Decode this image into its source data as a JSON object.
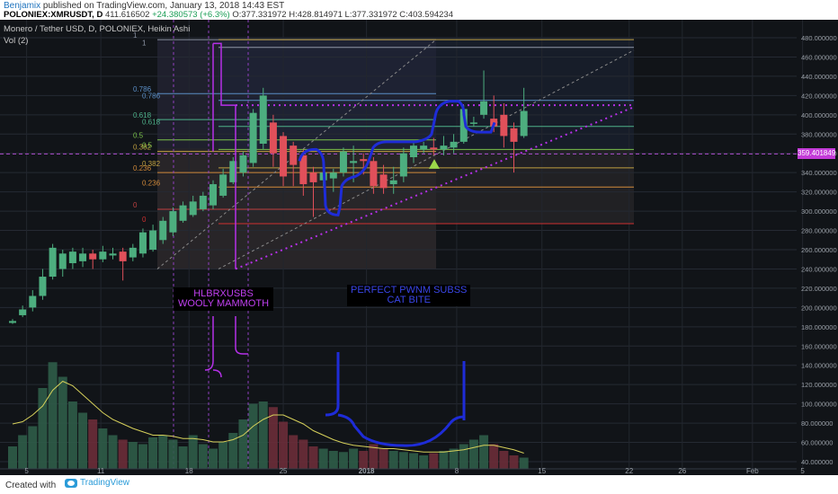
{
  "header": {
    "user": "Benjamix",
    "published": "published on TradingView.com, January 13, 2018 14:43 EST",
    "symbol": "POLONIEX:XMRUSDT, D",
    "price": "411.616502",
    "change": "+24.380573 (+6.3%)",
    "ohlc": "O:377.331972 H:428.814971 L:377.331972 C:403.594234"
  },
  "legend": {
    "title": "Monero / Tether USD, D, POLONIEX, Heikin Ashi",
    "volume": "Vol (2)"
  },
  "annotations": {
    "left": [
      "HLBRXUSBS",
      "WOOLY MAMMOTH"
    ],
    "right": [
      "PERFECT PWNM SUBSS",
      "CAT BITE"
    ]
  },
  "price_tag": "359.401849",
  "footer": {
    "created": "Created with",
    "brand": "TradingView"
  },
  "colors": {
    "up": "#4dae7f",
    "down": "#e0505a",
    "annotation_purple": "#b530e8",
    "annotation_blue": "#1e2cd8",
    "volume_line": "#d6d05a"
  },
  "chart_data": {
    "type": "candlestick",
    "x_ticks": [
      "5",
      "11",
      "18",
      "25",
      "2018",
      "8",
      "15",
      "22",
      "26",
      "Feb",
      "5"
    ],
    "y_ticks": [
      40,
      60,
      80,
      100,
      120,
      140,
      160,
      180,
      200,
      220,
      240,
      260,
      280,
      300,
      320,
      340,
      360,
      380,
      400,
      420,
      440,
      460,
      480
    ],
    "y_unit_decimals": 6,
    "fib_levels_left": [
      "1",
      "0.786",
      "0.618",
      "0.5",
      "0.382",
      "0.236",
      "0"
    ],
    "fib_levels_right": [
      "1",
      "0.786",
      "0.618",
      "0.5",
      "0.382",
      "0.236",
      "0"
    ],
    "fib_right_prices": [
      470,
      415,
      388,
      364,
      345,
      325,
      287
    ],
    "fib_left_prices": [
      478,
      422,
      395,
      374,
      362,
      340,
      302
    ],
    "candles": [
      {
        "o": 184,
        "c": 186,
        "h": 188,
        "l": 183
      },
      {
        "o": 192,
        "c": 198,
        "h": 202,
        "l": 190
      },
      {
        "o": 200,
        "c": 212,
        "h": 218,
        "l": 196
      },
      {
        "o": 212,
        "c": 232,
        "h": 240,
        "l": 208
      },
      {
        "o": 232,
        "c": 262,
        "h": 266,
        "l": 229
      },
      {
        "o": 240,
        "c": 256,
        "h": 260,
        "l": 232
      },
      {
        "o": 246,
        "c": 258,
        "h": 262,
        "l": 240
      },
      {
        "o": 248,
        "c": 256,
        "h": 262,
        "l": 242
      },
      {
        "o": 256,
        "c": 250,
        "h": 260,
        "l": 240
      },
      {
        "o": 250,
        "c": 258,
        "h": 264,
        "l": 247
      },
      {
        "o": 254,
        "c": 256,
        "h": 262,
        "l": 250
      },
      {
        "o": 258,
        "c": 248,
        "h": 262,
        "l": 228
      },
      {
        "o": 252,
        "c": 262,
        "h": 266,
        "l": 248
      },
      {
        "o": 256,
        "c": 278,
        "h": 282,
        "l": 252
      },
      {
        "o": 260,
        "c": 280,
        "h": 286,
        "l": 258
      },
      {
        "o": 270,
        "c": 290,
        "h": 294,
        "l": 266
      },
      {
        "o": 278,
        "c": 300,
        "h": 304,
        "l": 274
      },
      {
        "o": 290,
        "c": 306,
        "h": 310,
        "l": 288
      },
      {
        "o": 296,
        "c": 310,
        "h": 316,
        "l": 294
      },
      {
        "o": 302,
        "c": 316,
        "h": 320,
        "l": 300
      },
      {
        "o": 306,
        "c": 328,
        "h": 332,
        "l": 302
      },
      {
        "o": 316,
        "c": 338,
        "h": 344,
        "l": 314
      },
      {
        "o": 330,
        "c": 352,
        "h": 356,
        "l": 328
      },
      {
        "o": 340,
        "c": 358,
        "h": 362,
        "l": 336
      },
      {
        "o": 350,
        "c": 402,
        "h": 406,
        "l": 346
      },
      {
        "o": 370,
        "c": 420,
        "h": 428,
        "l": 364
      },
      {
        "o": 392,
        "c": 360,
        "h": 400,
        "l": 346
      },
      {
        "o": 378,
        "c": 336,
        "h": 382,
        "l": 326
      },
      {
        "o": 368,
        "c": 348,
        "h": 372,
        "l": 326
      },
      {
        "o": 358,
        "c": 328,
        "h": 364,
        "l": 316
      },
      {
        "o": 340,
        "c": 330,
        "h": 346,
        "l": 294
      },
      {
        "o": 332,
        "c": 340,
        "h": 346,
        "l": 326
      },
      {
        "o": 334,
        "c": 340,
        "h": 344,
        "l": 320
      },
      {
        "o": 340,
        "c": 362,
        "h": 366,
        "l": 336
      },
      {
        "o": 350,
        "c": 352,
        "h": 368,
        "l": 330
      },
      {
        "o": 354,
        "c": 352,
        "h": 360,
        "l": 338
      },
      {
        "o": 352,
        "c": 326,
        "h": 356,
        "l": 318
      },
      {
        "o": 338,
        "c": 324,
        "h": 348,
        "l": 318
      },
      {
        "o": 328,
        "c": 332,
        "h": 346,
        "l": 318
      },
      {
        "o": 336,
        "c": 360,
        "h": 366,
        "l": 330
      },
      {
        "o": 356,
        "c": 368,
        "h": 372,
        "l": 350
      },
      {
        "o": 364,
        "c": 368,
        "h": 372,
        "l": 360
      },
      {
        "o": 366,
        "c": 364,
        "h": 376,
        "l": 358
      },
      {
        "o": 364,
        "c": 368,
        "h": 378,
        "l": 358
      },
      {
        "o": 366,
        "c": 372,
        "h": 380,
        "l": 360
      },
      {
        "o": 372,
        "c": 406,
        "h": 410,
        "l": 370
      },
      {
        "o": 392,
        "c": 392,
        "h": 398,
        "l": 388
      },
      {
        "o": 400,
        "c": 414,
        "h": 446,
        "l": 396
      },
      {
        "o": 396,
        "c": 388,
        "h": 420,
        "l": 382
      },
      {
        "o": 400,
        "c": 378,
        "h": 412,
        "l": 366
      },
      {
        "o": 386,
        "c": 372,
        "h": 392,
        "l": 340
      },
      {
        "o": 378,
        "c": 404,
        "h": 428,
        "l": 376
      }
    ],
    "volume": [
      20,
      30,
      38,
      72,
      95,
      82,
      60,
      50,
      44,
      36,
      30,
      26,
      24,
      22,
      28,
      30,
      26,
      20,
      30,
      22,
      18,
      24,
      32,
      44,
      58,
      60,
      55,
      42,
      30,
      26,
      20,
      18,
      16,
      15,
      18,
      16,
      22,
      18,
      16,
      15,
      14,
      12,
      14,
      16,
      18,
      22,
      26,
      30,
      22,
      16,
      12,
      10
    ],
    "volume_ma": [
      40,
      42,
      48,
      56,
      70,
      78,
      74,
      66,
      58,
      50,
      44,
      40,
      36,
      33,
      30,
      30,
      29,
      27,
      27,
      26,
      24,
      24,
      26,
      30,
      38,
      44,
      48,
      48,
      44,
      40,
      34,
      30,
      26,
      23,
      21,
      20,
      19,
      18,
      18,
      17,
      16,
      15,
      15,
      15,
      16,
      17,
      19,
      21,
      21,
      19,
      17,
      14
    ]
  }
}
